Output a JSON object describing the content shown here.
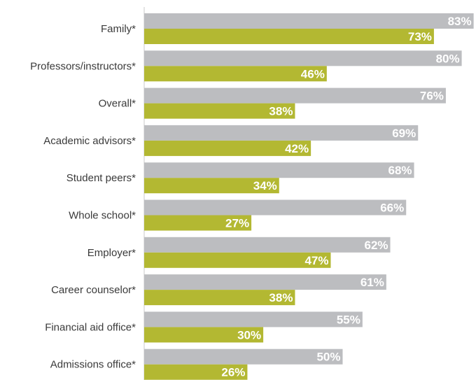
{
  "chart_data": {
    "type": "bar",
    "orientation": "horizontal",
    "categories": [
      "Family*",
      "Professors/instructors*",
      "Overall*",
      "Academic advisors*",
      "Student peers*",
      "Whole school*",
      "Employer*",
      "Career counselor*",
      "Financial aid office*",
      "Admissions office*"
    ],
    "series": [
      {
        "values": [
          83,
          80,
          76,
          69,
          68,
          66,
          62,
          61,
          55,
          50
        ],
        "value_labels": [
          "83%",
          "80%",
          "76%",
          "69%",
          "68%",
          "66%",
          "62%",
          "61%",
          "55%",
          "50%"
        ],
        "color": "#bcbdc0"
      },
      {
        "values": [
          73,
          46,
          38,
          42,
          34,
          27,
          47,
          38,
          30,
          26
        ],
        "value_labels": [
          "73%",
          "46%",
          "38%",
          "42%",
          "34%",
          "27%",
          "47%",
          "38%",
          "30%",
          "26%"
        ],
        "color": "#b3b832"
      }
    ],
    "xlim": [
      0,
      100
    ],
    "grid": false,
    "legend": "none",
    "title": "",
    "xlabel": "",
    "ylabel": ""
  }
}
